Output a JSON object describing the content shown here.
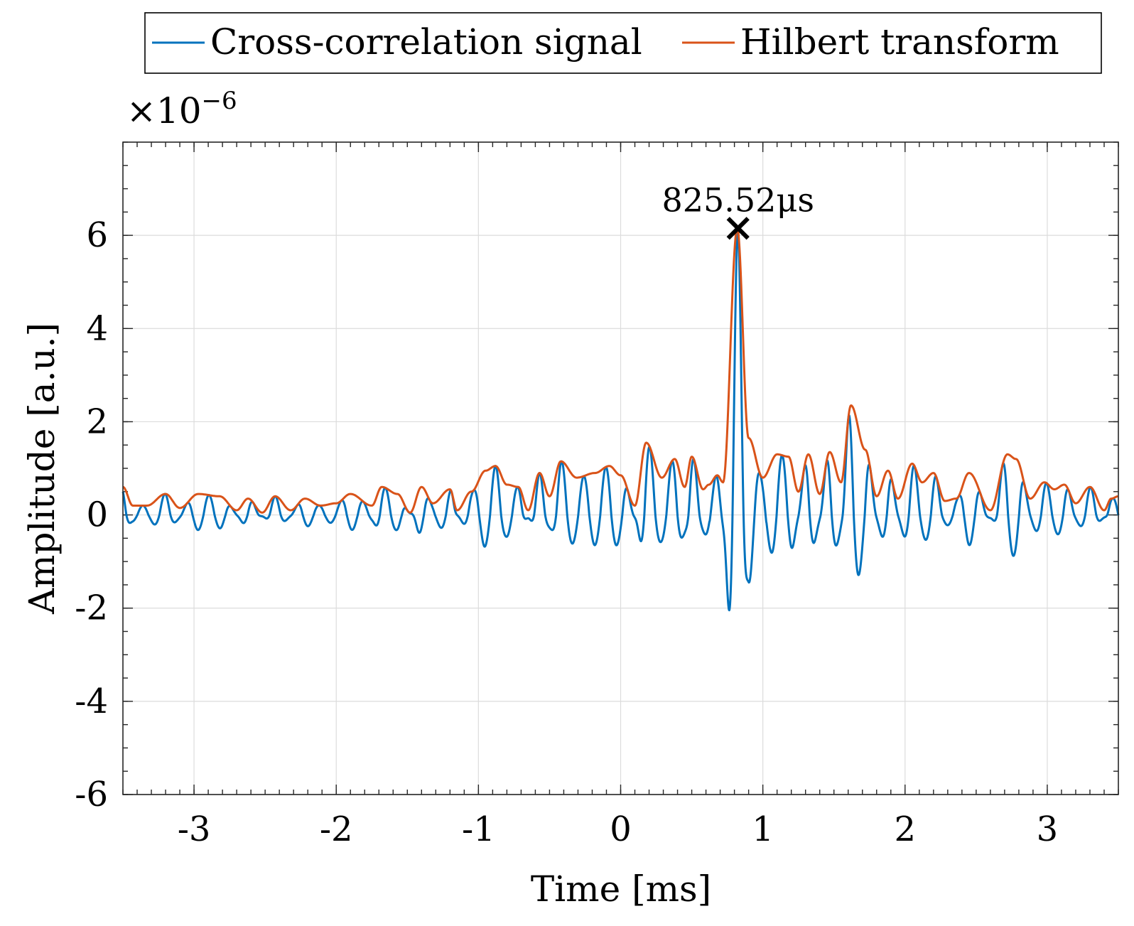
{
  "chart_data": {
    "type": "line",
    "title": "",
    "xlabel": "Time [ms]",
    "ylabel": "Amplitude [a.u.]",
    "y_exponent": {
      "base": "×10",
      "power": "−6"
    },
    "xlim": [
      -3.5,
      3.5
    ],
    "ylim": [
      -6,
      8
    ],
    "xticks": [
      -3,
      -2,
      -1,
      0,
      1,
      2,
      3
    ],
    "xtick_labels": [
      "-3",
      "-2",
      "-1",
      "0",
      "1",
      "2",
      "3"
    ],
    "yticks": [
      -6,
      -4,
      -2,
      0,
      2,
      4,
      6
    ],
    "ytick_labels": [
      "-6",
      "-4",
      "-2",
      "0",
      "2",
      "4",
      "6"
    ],
    "grid": true,
    "legend_position": "top, outside, horizontal",
    "legend": [
      "Cross-correlation signal",
      "Hilbert transform"
    ],
    "colors": {
      "signal": "#0072BD",
      "envelope": "#D95319",
      "marker": "#000000"
    },
    "peak": {
      "x": 0.82552,
      "y": 6.15,
      "label": "825.52μs"
    },
    "series": [
      {
        "name": "Cross-correlation signal",
        "description": "oscillating signal inside the envelope, approx. 0.155 ms period",
        "period_ms": 0.155
      },
      {
        "name": "Hilbert transform",
        "description": "upper envelope of the cross-correlation signal",
        "x": [
          -3.5,
          -3.43,
          -3.33,
          -3.2,
          -3.1,
          -2.97,
          -2.82,
          -2.7,
          -2.62,
          -2.52,
          -2.43,
          -2.32,
          -2.22,
          -2.11,
          -2.0,
          -1.9,
          -1.75,
          -1.68,
          -1.57,
          -1.48,
          -1.4,
          -1.32,
          -1.2,
          -1.15,
          -1.05,
          -0.95,
          -0.88,
          -0.8,
          -0.72,
          -0.65,
          -0.57,
          -0.5,
          -0.42,
          -0.31,
          -0.18,
          -0.08,
          0.0,
          0.1,
          0.18,
          0.29,
          0.38,
          0.45,
          0.5,
          0.58,
          0.62,
          0.68,
          0.72,
          0.82,
          0.9,
          1.0,
          1.1,
          1.18,
          1.25,
          1.32,
          1.4,
          1.47,
          1.55,
          1.62,
          1.72,
          1.8,
          1.88,
          1.95,
          2.05,
          2.12,
          2.2,
          2.28,
          2.36,
          2.45,
          2.6,
          2.72,
          2.78,
          2.88,
          2.98,
          3.05,
          3.12,
          3.2,
          3.3,
          3.4,
          3.45,
          3.5
        ],
        "y": [
          0.6,
          0.2,
          0.2,
          0.45,
          0.15,
          0.45,
          0.4,
          0.1,
          0.35,
          0.05,
          0.4,
          0.1,
          0.35,
          0.2,
          0.25,
          0.45,
          0.2,
          0.6,
          0.45,
          0.05,
          0.6,
          0.25,
          0.55,
          0.1,
          0.5,
          0.95,
          1.05,
          0.65,
          0.6,
          0.1,
          0.9,
          0.4,
          1.15,
          0.8,
          0.9,
          1.05,
          0.85,
          0.2,
          1.55,
          0.8,
          1.2,
          0.6,
          1.25,
          0.55,
          0.65,
          0.85,
          0.7,
          6.15,
          1.65,
          0.8,
          1.3,
          1.25,
          0.5,
          1.3,
          0.45,
          1.35,
          0.7,
          2.35,
          1.4,
          0.4,
          0.95,
          0.35,
          1.1,
          0.7,
          0.9,
          0.3,
          0.35,
          0.9,
          0.1,
          1.3,
          1.2,
          0.35,
          0.7,
          0.55,
          0.65,
          0.25,
          0.6,
          0.1,
          0.35,
          0.4
        ]
      }
    ]
  }
}
